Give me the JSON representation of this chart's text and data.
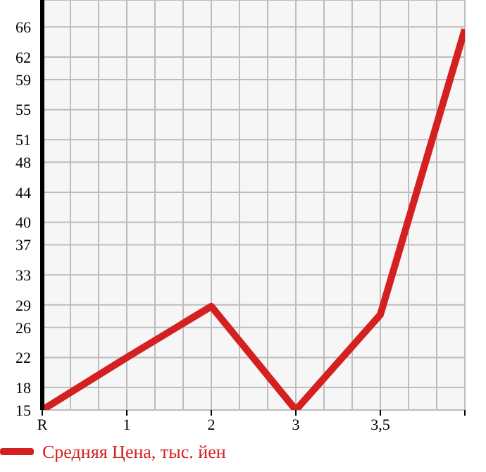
{
  "chart_data": {
    "type": "line",
    "categories": [
      "R",
      "1",
      "2",
      "3",
      "3,5",
      null
    ],
    "series": [
      {
        "name": "Средняя Цена, тыс. йен",
        "color": "#d42020",
        "values": [
          15,
          22,
          28.8,
          15,
          27.7,
          65.7
        ]
      }
    ],
    "ylim": [
      15,
      69.6
    ],
    "yticks": [
      15,
      18,
      22,
      26,
      29,
      33,
      37,
      40,
      44,
      48,
      51,
      55,
      59,
      62,
      66
    ],
    "grid": true,
    "legend": "bottom",
    "marker": "none",
    "line_style": "solid"
  }
}
